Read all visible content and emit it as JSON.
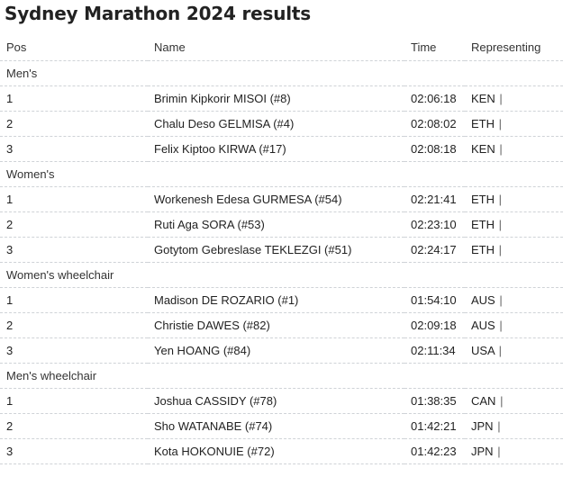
{
  "title": "Sydney Marathon 2024 results",
  "columns": {
    "pos": "Pos",
    "name": "Name",
    "time": "Time",
    "representing": "Representing"
  },
  "separator": "|",
  "sections": [
    {
      "label": "Men's",
      "rows": [
        {
          "pos": "1",
          "name": "Brimin Kipkorir MISOI (#8)",
          "time": "02:06:18",
          "country": "KEN"
        },
        {
          "pos": "2",
          "name": "Chalu Deso GELMISA (#4)",
          "time": "02:08:02",
          "country": "ETH"
        },
        {
          "pos": "3",
          "name": "Felix Kiptoo KIRWA (#17)",
          "time": "02:08:18",
          "country": "KEN"
        }
      ]
    },
    {
      "label": "Women's",
      "rows": [
        {
          "pos": "1",
          "name": "Workenesh Edesa GURMESA (#54)",
          "time": "02:21:41",
          "country": "ETH"
        },
        {
          "pos": "2",
          "name": "Ruti Aga SORA (#53)",
          "time": "02:23:10",
          "country": "ETH"
        },
        {
          "pos": "3",
          "name": "Gotytom Gebreslase TEKLEZGI (#51)",
          "time": "02:24:17",
          "country": "ETH"
        }
      ]
    },
    {
      "label": "Women's wheelchair",
      "rows": [
        {
          "pos": "1",
          "name": "Madison DE ROZARIO (#1)",
          "time": "01:54:10",
          "country": "AUS"
        },
        {
          "pos": "2",
          "name": "Christie DAWES (#82)",
          "time": "02:09:18",
          "country": "AUS"
        },
        {
          "pos": "3",
          "name": "Yen HOANG (#84)",
          "time": "02:11:34",
          "country": "USA"
        }
      ]
    },
    {
      "label": "Men's wheelchair",
      "rows": [
        {
          "pos": "1",
          "name": "Joshua CASSIDY (#78)",
          "time": "01:38:35",
          "country": "CAN"
        },
        {
          "pos": "2",
          "name": "Sho WATANABE (#74)",
          "time": "01:42:21",
          "country": "JPN"
        },
        {
          "pos": "3",
          "name": "Kota HOKONUIE (#72)",
          "time": "01:42:23",
          "country": "JPN"
        }
      ]
    }
  ]
}
